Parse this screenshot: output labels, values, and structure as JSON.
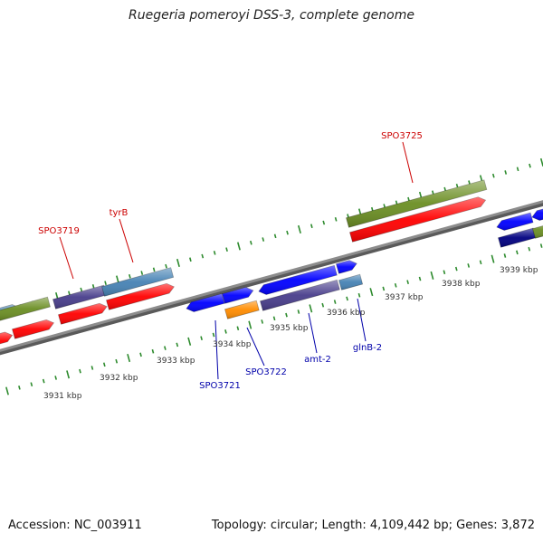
{
  "title": "Ruegeria pomeroyi DSS-3, complete genome",
  "footer": {
    "accession": "Accession: NC_003911",
    "stats": "Topology: circular; Length: 4,109,442 bp; Genes: 3,872"
  },
  "colors": {
    "backbone": "#8c8c8c",
    "tick_minor": "#2e8b2e",
    "label_red": "#cc0000",
    "label_blue": "#0000aa",
    "red": "#ff0000",
    "olive": "#6b8e23",
    "slate": "#483d8b",
    "steel": "#4682b4",
    "blue": "#0000ff",
    "orange": "#ff8c00",
    "navy": "#000080"
  },
  "scale_labels": [
    "3931 kbp",
    "3932 kbp",
    "3933 kbp",
    "3934 kbp",
    "3935 kbp",
    "3936 kbp",
    "3937 kbp",
    "3938 kbp",
    "3939 kbp"
  ],
  "gene_labels_top": [
    "SPO3719",
    "tyrB",
    "SPO3725"
  ],
  "gene_labels_bottom": [
    "SPO3721",
    "SPO3722",
    "amt-2",
    "glnB-2"
  ]
}
